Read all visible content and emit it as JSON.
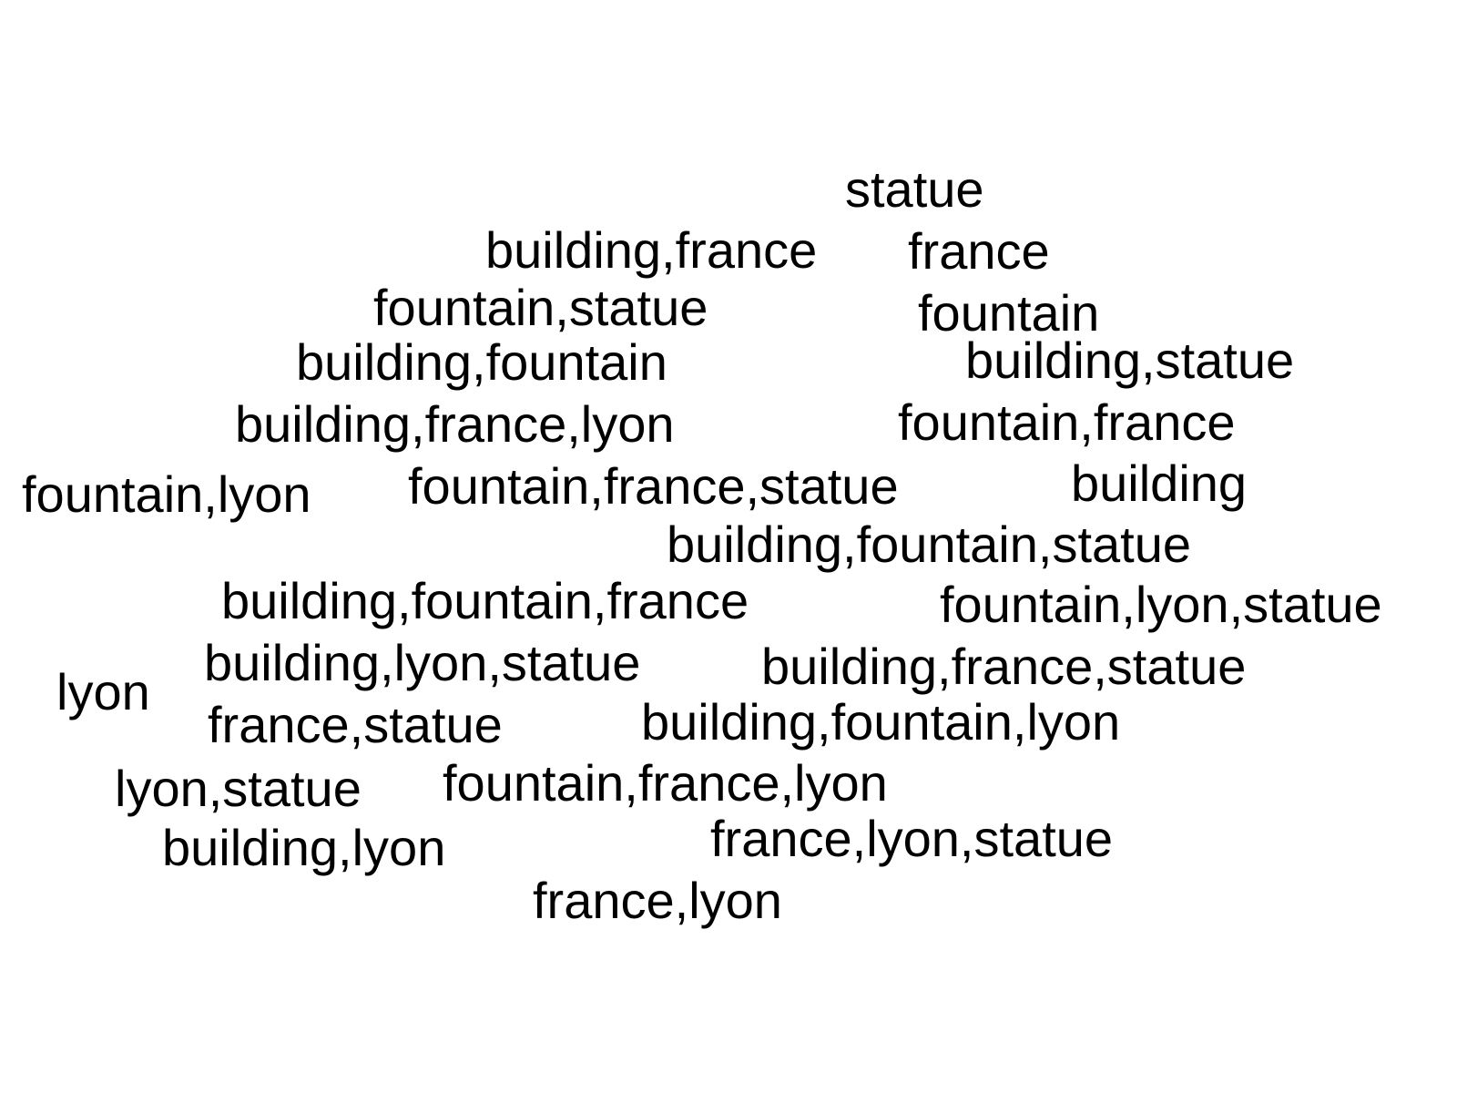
{
  "text_color": "#000000",
  "background_color": "#ffffff",
  "labels": [
    "statue",
    "building,france",
    "france",
    "fountain,statue",
    "fountain",
    "building,fountain",
    "building,statue",
    "building,france,lyon",
    "fountain,france",
    "fountain,lyon",
    "fountain,france,statue",
    "building",
    "building,fountain,statue",
    "building,fountain,france",
    "fountain,lyon,statue",
    "building,lyon,statue",
    "building,france,statue",
    "lyon",
    "france,statue",
    "building,fountain,lyon",
    "lyon,statue",
    "fountain,france,lyon",
    "building,lyon",
    "france,lyon,statue",
    "france,lyon"
  ]
}
